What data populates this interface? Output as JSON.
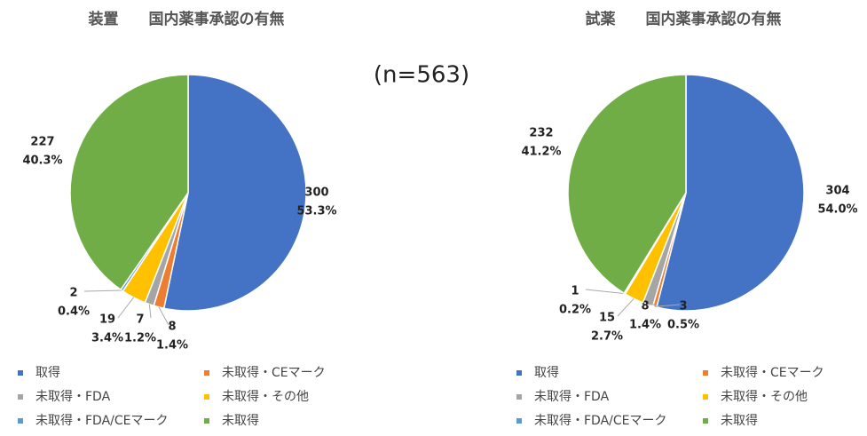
{
  "annotation": "(n=563)",
  "chart_data": [
    {
      "type": "pie",
      "title": "装置　　国内薬事承認の有無",
      "categories": [
        "取得",
        "未取得・CEマーク",
        "未取得・FDA",
        "未取得・その他",
        "未取得・FDA/CEマーク",
        "未取得"
      ],
      "values": [
        300,
        8,
        7,
        19,
        2,
        227
      ],
      "percent_labels": [
        "53.3%",
        "1.4%",
        "1.2%",
        "3.4%",
        "0.4%",
        "40.3%"
      ],
      "colors": [
        "#4472c4",
        "#ed7d31",
        "#a5a5a5",
        "#ffc000",
        "#5b9bd5",
        "#70ad47"
      ]
    },
    {
      "type": "pie",
      "title": "試薬　　国内薬事承認の有無",
      "categories": [
        "取得",
        "未取得・CEマーク",
        "未取得・FDA",
        "未取得・その他",
        "未取得・FDA/CEマーク",
        "未取得"
      ],
      "values": [
        304,
        3,
        8,
        15,
        1,
        232
      ],
      "percent_labels": [
        "54.0%",
        "0.5%",
        "1.4%",
        "2.7%",
        "0.2%",
        "41.2%"
      ],
      "colors": [
        "#4472c4",
        "#ed7d31",
        "#a5a5a5",
        "#ffc000",
        "#5b9bd5",
        "#70ad47"
      ]
    }
  ]
}
